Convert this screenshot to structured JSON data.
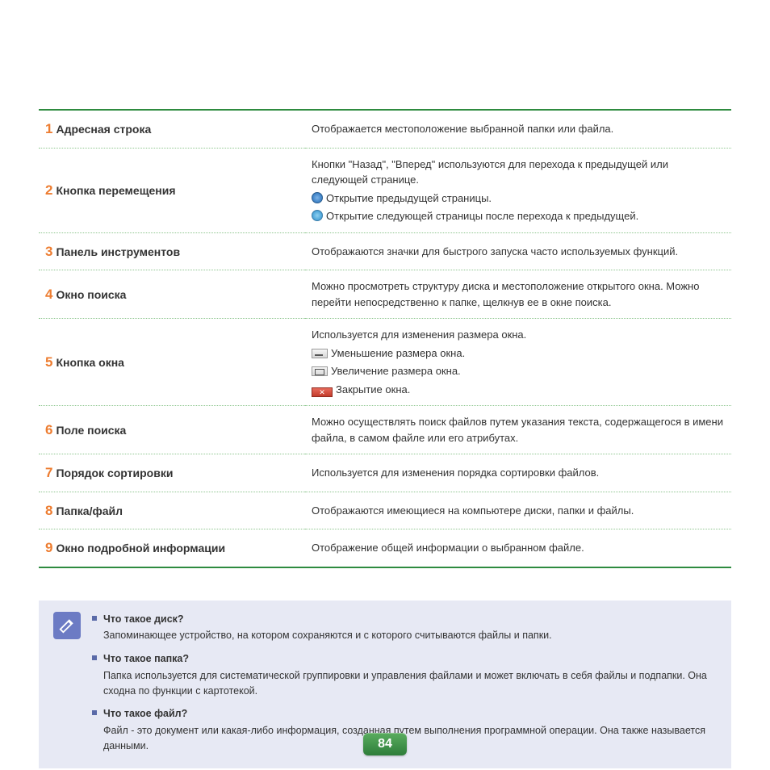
{
  "colors": {
    "table_border": "#2e8b3f",
    "row_divider": "#8ec68f",
    "number": "#ed7d31",
    "note_bg": "#e7e9f4",
    "note_icon_bg": "#6c7bc4",
    "bullet": "#5a6aa8",
    "pagenum_gradient_top": "#5aad5f",
    "pagenum_gradient_bottom": "#2e7d3a",
    "text": "#333333"
  },
  "rows": [
    {
      "n": "1",
      "term": "Адресная строка",
      "desc": "Отображается местоположение выбранной папки или файла."
    },
    {
      "n": "2",
      "term": "Кнопка перемещения",
      "desc_intro": "Кнопки \"Назад\", \"Вперед\" используются для перехода к предыдущей или следующей странице.",
      "sub": [
        {
          "icon": "back",
          "text": "Открытие предыдущей страницы."
        },
        {
          "icon": "fwd",
          "text": "Открытие следующей страницы после перехода к предыдущей."
        }
      ]
    },
    {
      "n": "3",
      "term": "Панель инструментов",
      "desc": "Отображаются значки для быстрого запуска часто используемых функций."
    },
    {
      "n": "4",
      "term": "Окно поиска",
      "desc": "Можно просмотреть структуру диска и местоположение открытого окна. Можно перейти непосредственно к папке, щелкнув ее в окне поиска."
    },
    {
      "n": "5",
      "term": "Кнопка окна",
      "desc_intro": "Используется для изменения размера окна.",
      "sub": [
        {
          "icon": "min",
          "text": "Уменьшение размера окна."
        },
        {
          "icon": "max",
          "text": "Увеличение размера окна."
        },
        {
          "icon": "close",
          "text": "Закрытие окна."
        }
      ]
    },
    {
      "n": "6",
      "term": "Поле поиска",
      "desc": "Можно осуществлять поиск файлов путем указания текста, содержащегося в имени файла, в самом файле или его атрибутах."
    },
    {
      "n": "7",
      "term": "Порядок сортировки",
      "desc": "Используется для изменения порядка сортировки файлов."
    },
    {
      "n": "8",
      "term": "Папка/файл",
      "desc": "Отображаются имеющиеся на компьютере диски, папки и файлы."
    },
    {
      "n": "9",
      "term": "Окно подробной информации",
      "desc": "Отображение общей информации о выбранном файле."
    }
  ],
  "notes": [
    {
      "q": "Что такое диск?",
      "a": "Запоминающее устройство, на котором сохраняются и с которого считываются файлы и папки."
    },
    {
      "q": "Что такое папка?",
      "a": "Папка используется для систематической группировки и управления файлами и может включать в себя файлы и подпапки. Она сходна по функции с картотекой."
    },
    {
      "q": "Что такое файл?",
      "a": "Файл - это документ или какая-либо информация, созданная путем выполнения программной операции. Она также называется данными."
    }
  ],
  "page_number": "84"
}
